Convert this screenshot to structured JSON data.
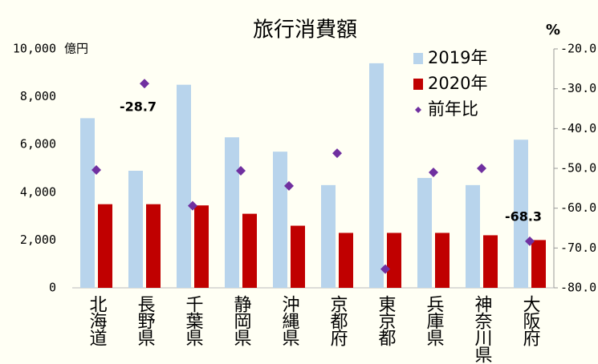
{
  "chart_data": {
    "type": "bar",
    "title": "旅行消費額",
    "y_unit": "億円",
    "y2_unit": "%",
    "categories": [
      "北海道",
      "長野県",
      "千葉県",
      "静岡県",
      "沖縄県",
      "京都府",
      "東京都",
      "兵庫県",
      "神奈川県",
      "大阪府"
    ],
    "series": [
      {
        "name": "2019年",
        "type": "bar",
        "color": "#b8d4ec",
        "values": [
          7100,
          4900,
          8500,
          6300,
          5700,
          4300,
          9400,
          4600,
          4300,
          6200
        ]
      },
      {
        "name": "2020年",
        "type": "bar",
        "color": "#c00000",
        "values": [
          3500,
          3500,
          3450,
          3100,
          2600,
          2300,
          2300,
          2300,
          2200,
          2000
        ]
      },
      {
        "name": "前年比",
        "type": "scatter",
        "axis": "y2",
        "color": "#7030a0",
        "values": [
          -50.4,
          -28.7,
          -59.4,
          -50.6,
          -54.4,
          -46.2,
          -75.3,
          -51.0,
          -50.0,
          -68.3
        ],
        "value_labels": [
          null,
          "-28.7",
          null,
          null,
          null,
          null,
          null,
          null,
          null,
          "-68.3"
        ],
        "value_label_colors": [
          null,
          "#000000",
          null,
          null,
          null,
          null,
          null,
          null,
          null,
          "#8b1a6b"
        ]
      }
    ],
    "ylim": [
      0,
      10000
    ],
    "yticks": [
      0,
      {
        "value": 2000,
        "label": "2,000"
      },
      {
        "value": 4000,
        "label": "4,000"
      },
      {
        "value": 6000,
        "label": "6,000"
      },
      {
        "value": 8000,
        "label": "8,000"
      },
      {
        "value": 10000,
        "label": "10,000"
      }
    ],
    "y2lim": [
      -80,
      -20
    ],
    "y2ticks": [
      {
        "value": -80,
        "label": "-80.0"
      },
      {
        "value": -70,
        "label": "-70.0"
      },
      {
        "value": -60,
        "label": "-60.0"
      },
      {
        "value": -50,
        "label": "-50.0"
      },
      {
        "value": -40,
        "label": "-40.0"
      },
      {
        "value": -30,
        "label": "-30.0"
      },
      {
        "value": -20,
        "label": "-20.0"
      }
    ],
    "legend": "upper right"
  }
}
